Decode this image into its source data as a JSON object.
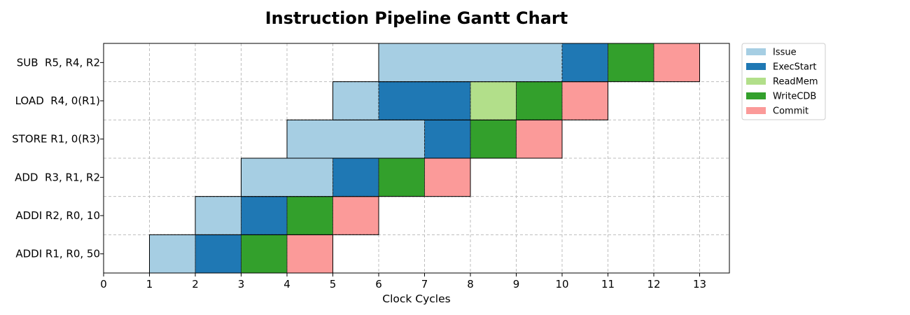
{
  "chart_data": {
    "type": "gantt",
    "title": "Instruction Pipeline Gantt Chart",
    "xlabel": "Clock Cycles",
    "ylabel": "",
    "xlim": [
      0,
      13.6
    ],
    "xticks": [
      0,
      1,
      2,
      3,
      4,
      5,
      6,
      7,
      8,
      9,
      10,
      11,
      12,
      13
    ],
    "grid": true,
    "legend_position": "upper-right-outside",
    "stage_colors": {
      "Issue": "#a6cee3",
      "ExecStart": "#1f78b4",
      "ReadMem": "#b2df8a",
      "WriteCDB": "#33a02c",
      "Commit": "#fb9a99"
    },
    "legend": [
      "Issue",
      "ExecStart",
      "ReadMem",
      "WriteCDB",
      "Commit"
    ],
    "instructions": [
      {
        "label": "ADDI R1, R0, 50",
        "stages": [
          {
            "stage": "Issue",
            "start": 1,
            "end": 2
          },
          {
            "stage": "ExecStart",
            "start": 2,
            "end": 3
          },
          {
            "stage": "WriteCDB",
            "start": 3,
            "end": 4
          },
          {
            "stage": "Commit",
            "start": 4,
            "end": 5
          }
        ]
      },
      {
        "label": "ADDI R2, R0, 10",
        "stages": [
          {
            "stage": "Issue",
            "start": 2,
            "end": 3
          },
          {
            "stage": "ExecStart",
            "start": 3,
            "end": 4
          },
          {
            "stage": "WriteCDB",
            "start": 4,
            "end": 5
          },
          {
            "stage": "Commit",
            "start": 5,
            "end": 6
          }
        ]
      },
      {
        "label": "ADD  R3, R1, R2",
        "stages": [
          {
            "stage": "Issue",
            "start": 3,
            "end": 5
          },
          {
            "stage": "ExecStart",
            "start": 5,
            "end": 6
          },
          {
            "stage": "WriteCDB",
            "start": 6,
            "end": 7
          },
          {
            "stage": "Commit",
            "start": 7,
            "end": 8
          }
        ]
      },
      {
        "label": "STORE R1, 0(R3)",
        "stages": [
          {
            "stage": "Issue",
            "start": 4,
            "end": 7
          },
          {
            "stage": "ExecStart",
            "start": 7,
            "end": 8
          },
          {
            "stage": "WriteCDB",
            "start": 8,
            "end": 9
          },
          {
            "stage": "Commit",
            "start": 9,
            "end": 10
          }
        ]
      },
      {
        "label": "LOAD  R4, 0(R1)",
        "stages": [
          {
            "stage": "Issue",
            "start": 5,
            "end": 6
          },
          {
            "stage": "ExecStart",
            "start": 6,
            "end": 8
          },
          {
            "stage": "ReadMem",
            "start": 8,
            "end": 9
          },
          {
            "stage": "WriteCDB",
            "start": 9,
            "end": 10
          },
          {
            "stage": "Commit",
            "start": 10,
            "end": 11
          }
        ]
      },
      {
        "label": "SUB  R5, R4, R2",
        "stages": [
          {
            "stage": "Issue",
            "start": 6,
            "end": 10
          },
          {
            "stage": "ExecStart",
            "start": 10,
            "end": 11
          },
          {
            "stage": "WriteCDB",
            "start": 11,
            "end": 12
          },
          {
            "stage": "Commit",
            "start": 12,
            "end": 13
          }
        ]
      }
    ]
  }
}
